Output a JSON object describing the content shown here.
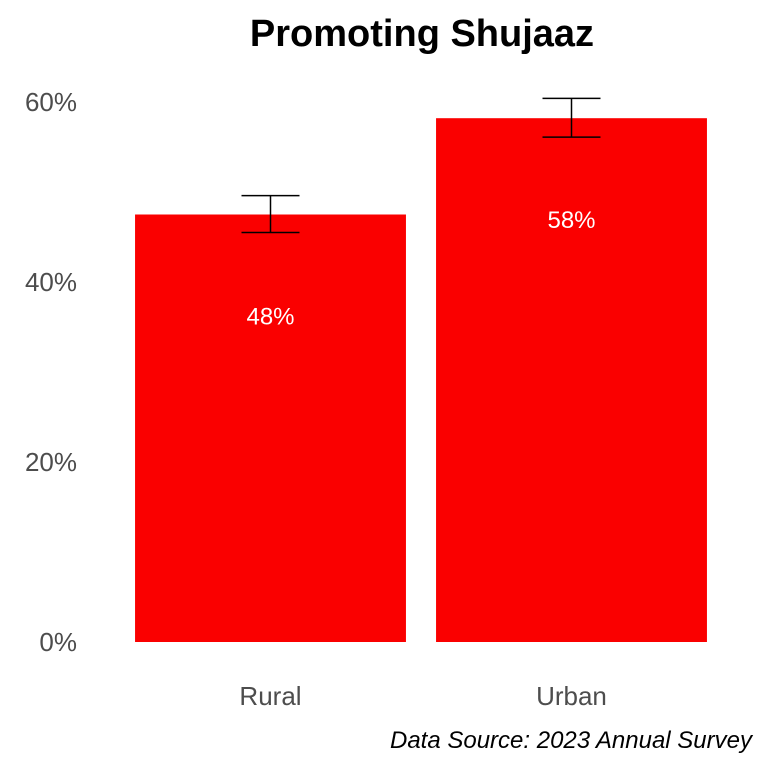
{
  "chart_data": {
    "type": "bar",
    "title": "Promoting Shujaaz",
    "categories": [
      "Rural",
      "Urban"
    ],
    "values": [
      47.5,
      58.2
    ],
    "error_bars": [
      {
        "low": 45.5,
        "high": 49.6
      },
      {
        "low": 56.1,
        "high": 60.4
      }
    ],
    "data_labels": [
      "48%",
      "58%"
    ],
    "ylim": [
      0,
      65
    ],
    "y_ticks": [
      0,
      20,
      40,
      60
    ],
    "y_tick_labels": [
      "0%",
      "20%",
      "40%",
      "60%"
    ],
    "xlabel": "",
    "ylabel": "",
    "grid": false,
    "legend": "none",
    "caption": "Data Source: 2023 Annual Survey",
    "bar_color": "#fa0000",
    "error_bar_color": "#000000",
    "data_label_color": "#ffffff"
  }
}
